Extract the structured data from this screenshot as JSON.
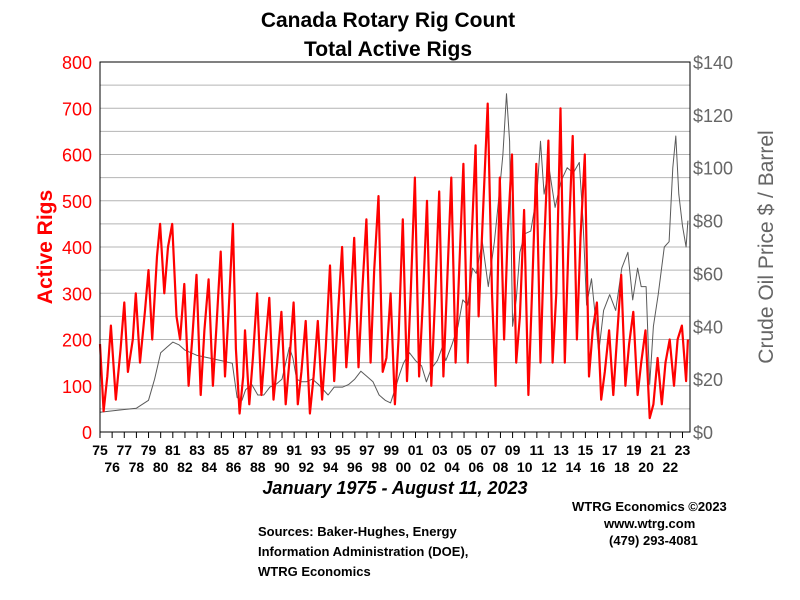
{
  "chart_data": {
    "type": "line",
    "title": "Canada Rotary Rig Count",
    "subtitle": "Total Active Rigs",
    "date_range": "January 1975 - August 11, 2023",
    "ylabel_left": "Active Rigs",
    "ylabel_right": "Crude Oil Price $ / Barrel",
    "ylim_left": [
      0,
      800
    ],
    "ylim_right": [
      0,
      140
    ],
    "yticks_left": [
      "0",
      "100",
      "200",
      "300",
      "400",
      "500",
      "600",
      "700",
      "800"
    ],
    "yticks_right": [
      "$0",
      "$20",
      "$40",
      "$60",
      "$80",
      "$100",
      "$120",
      "$140"
    ],
    "xticks_top": [
      "75",
      "77",
      "79",
      "81",
      "83",
      "85",
      "87",
      "89",
      "91",
      "93",
      "95",
      "97",
      "99",
      "01",
      "03",
      "05",
      "07",
      "09",
      "11",
      "13",
      "15",
      "17",
      "19",
      "21",
      "23"
    ],
    "xticks_bottom": [
      "76",
      "78",
      "80",
      "82",
      "84",
      "86",
      "88",
      "90",
      "92",
      "94",
      "96",
      "98",
      "00",
      "02",
      "04",
      "06",
      "08",
      "10",
      "12",
      "14",
      "16",
      "18",
      "20",
      "22"
    ],
    "grid": true,
    "series": [
      {
        "name": "Active Rigs",
        "axis": "left",
        "color": "#ff0000",
        "points": [
          [
            1975.0,
            190
          ],
          [
            1975.3,
            45
          ],
          [
            1975.6,
            120
          ],
          [
            1975.9,
            230
          ],
          [
            1976.3,
            70
          ],
          [
            1976.7,
            180
          ],
          [
            1977.0,
            280
          ],
          [
            1977.3,
            130
          ],
          [
            1977.7,
            200
          ],
          [
            1977.95,
            300
          ],
          [
            1978.3,
            150
          ],
          [
            1978.7,
            260
          ],
          [
            1979.0,
            350
          ],
          [
            1979.3,
            200
          ],
          [
            1979.7,
            380
          ],
          [
            1979.95,
            450
          ],
          [
            1980.3,
            300
          ],
          [
            1980.6,
            400
          ],
          [
            1980.95,
            450
          ],
          [
            1981.3,
            250
          ],
          [
            1981.6,
            200
          ],
          [
            1981.95,
            320
          ],
          [
            1982.3,
            100
          ],
          [
            1982.6,
            200
          ],
          [
            1982.95,
            340
          ],
          [
            1983.3,
            80
          ],
          [
            1983.6,
            220
          ],
          [
            1983.95,
            330
          ],
          [
            1984.3,
            100
          ],
          [
            1984.6,
            230
          ],
          [
            1984.95,
            390
          ],
          [
            1985.3,
            120
          ],
          [
            1985.6,
            260
          ],
          [
            1985.95,
            450
          ],
          [
            1986.2,
            180
          ],
          [
            1986.5,
            40
          ],
          [
            1986.8,
            120
          ],
          [
            1986.95,
            220
          ],
          [
            1987.3,
            60
          ],
          [
            1987.6,
            160
          ],
          [
            1987.95,
            300
          ],
          [
            1988.3,
            80
          ],
          [
            1988.6,
            180
          ],
          [
            1988.95,
            290
          ],
          [
            1989.3,
            70
          ],
          [
            1989.6,
            150
          ],
          [
            1989.95,
            260
          ],
          [
            1990.3,
            60
          ],
          [
            1990.6,
            150
          ],
          [
            1990.95,
            280
          ],
          [
            1991.3,
            60
          ],
          [
            1991.6,
            130
          ],
          [
            1991.95,
            240
          ],
          [
            1992.3,
            40
          ],
          [
            1992.6,
            120
          ],
          [
            1992.95,
            240
          ],
          [
            1993.3,
            70
          ],
          [
            1993.6,
            180
          ],
          [
            1993.95,
            360
          ],
          [
            1994.3,
            110
          ],
          [
            1994.6,
            250
          ],
          [
            1994.95,
            400
          ],
          [
            1995.3,
            140
          ],
          [
            1995.6,
            250
          ],
          [
            1995.95,
            420
          ],
          [
            1996.3,
            140
          ],
          [
            1996.6,
            300
          ],
          [
            1996.95,
            460
          ],
          [
            1997.3,
            150
          ],
          [
            1997.6,
            350
          ],
          [
            1997.95,
            510
          ],
          [
            1998.3,
            130
          ],
          [
            1998.6,
            160
          ],
          [
            1998.95,
            300
          ],
          [
            1999.3,
            60
          ],
          [
            1999.6,
            200
          ],
          [
            1999.95,
            460
          ],
          [
            2000.3,
            110
          ],
          [
            2000.6,
            300
          ],
          [
            2000.95,
            550
          ],
          [
            2001.3,
            120
          ],
          [
            2001.6,
            280
          ],
          [
            2001.95,
            500
          ],
          [
            2002.3,
            100
          ],
          [
            2002.6,
            280
          ],
          [
            2002.95,
            520
          ],
          [
            2003.3,
            120
          ],
          [
            2003.6,
            320
          ],
          [
            2003.95,
            550
          ],
          [
            2004.3,
            150
          ],
          [
            2004.6,
            350
          ],
          [
            2004.95,
            580
          ],
          [
            2005.3,
            150
          ],
          [
            2005.6,
            400
          ],
          [
            2005.95,
            620
          ],
          [
            2006.2,
            250
          ],
          [
            2006.6,
            500
          ],
          [
            2006.95,
            710
          ],
          [
            2007.3,
            300
          ],
          [
            2007.6,
            100
          ],
          [
            2007.95,
            550
          ],
          [
            2008.3,
            200
          ],
          [
            2008.6,
            430
          ],
          [
            2008.95,
            600
          ],
          [
            2009.3,
            150
          ],
          [
            2009.6,
            250
          ],
          [
            2009.95,
            480
          ],
          [
            2010.3,
            80
          ],
          [
            2010.6,
            300
          ],
          [
            2010.95,
            580
          ],
          [
            2011.3,
            150
          ],
          [
            2011.6,
            400
          ],
          [
            2011.95,
            630
          ],
          [
            2012.3,
            150
          ],
          [
            2012.6,
            300
          ],
          [
            2012.95,
            700
          ],
          [
            2013.3,
            150
          ],
          [
            2013.6,
            400
          ],
          [
            2013.95,
            640
          ],
          [
            2014.3,
            200
          ],
          [
            2014.6,
            420
          ],
          [
            2014.95,
            600
          ],
          [
            2015.3,
            120
          ],
          [
            2015.6,
            220
          ],
          [
            2015.95,
            280
          ],
          [
            2016.3,
            70
          ],
          [
            2016.6,
            130
          ],
          [
            2016.95,
            220
          ],
          [
            2017.3,
            80
          ],
          [
            2017.6,
            200
          ],
          [
            2017.95,
            340
          ],
          [
            2018.3,
            100
          ],
          [
            2018.6,
            190
          ],
          [
            2018.95,
            260
          ],
          [
            2019.3,
            80
          ],
          [
            2019.6,
            150
          ],
          [
            2019.95,
            220
          ],
          [
            2020.3,
            30
          ],
          [
            2020.6,
            60
          ],
          [
            2020.95,
            160
          ],
          [
            2021.3,
            60
          ],
          [
            2021.6,
            150
          ],
          [
            2021.95,
            200
          ],
          [
            2022.3,
            100
          ],
          [
            2022.6,
            200
          ],
          [
            2022.95,
            230
          ],
          [
            2023.3,
            110
          ],
          [
            2023.45,
            200
          ]
        ]
      },
      {
        "name": "Crude Oil Price",
        "axis": "right",
        "color": "#5a5a5a",
        "points": [
          [
            1975.0,
            7.5
          ],
          [
            1976.0,
            8
          ],
          [
            1977.0,
            8.5
          ],
          [
            1978.0,
            9
          ],
          [
            1979.0,
            12
          ],
          [
            1979.5,
            20
          ],
          [
            1980.0,
            30
          ],
          [
            1980.5,
            32
          ],
          [
            1981.0,
            34
          ],
          [
            1981.5,
            33
          ],
          [
            1982.0,
            31
          ],
          [
            1983.0,
            29
          ],
          [
            1984.0,
            28
          ],
          [
            1985.0,
            27
          ],
          [
            1985.9,
            26
          ],
          [
            1986.3,
            13
          ],
          [
            1986.7,
            12
          ],
          [
            1987.0,
            16
          ],
          [
            1987.5,
            18
          ],
          [
            1988.0,
            14
          ],
          [
            1988.5,
            14
          ],
          [
            1989.0,
            17
          ],
          [
            1989.5,
            18
          ],
          [
            1990.0,
            20
          ],
          [
            1990.6,
            32
          ],
          [
            1990.9,
            28
          ],
          [
            1991.2,
            20
          ],
          [
            1991.6,
            19
          ],
          [
            1992.0,
            19
          ],
          [
            1992.5,
            20
          ],
          [
            1993.0,
            18
          ],
          [
            1993.8,
            14
          ],
          [
            1994.3,
            17
          ],
          [
            1995.0,
            17
          ],
          [
            1995.5,
            18
          ],
          [
            1996.0,
            20
          ],
          [
            1996.5,
            23
          ],
          [
            1997.0,
            21
          ],
          [
            1997.5,
            19
          ],
          [
            1998.0,
            14
          ],
          [
            1998.5,
            12
          ],
          [
            1998.95,
            11
          ],
          [
            1999.3,
            16
          ],
          [
            1999.7,
            22
          ],
          [
            2000.0,
            26
          ],
          [
            2000.5,
            30
          ],
          [
            2001.0,
            27
          ],
          [
            2001.5,
            25
          ],
          [
            2001.9,
            19
          ],
          [
            2002.3,
            24
          ],
          [
            2002.8,
            27
          ],
          [
            2003.2,
            32
          ],
          [
            2003.5,
            27
          ],
          [
            2004.0,
            33
          ],
          [
            2004.5,
            40
          ],
          [
            2004.9,
            50
          ],
          [
            2005.3,
            48
          ],
          [
            2005.7,
            62
          ],
          [
            2006.0,
            60
          ],
          [
            2006.5,
            72
          ],
          [
            2007.0,
            55
          ],
          [
            2007.5,
            72
          ],
          [
            2007.9,
            90
          ],
          [
            2008.2,
            105
          ],
          [
            2008.5,
            128
          ],
          [
            2008.75,
            110
          ],
          [
            2009.0,
            40
          ],
          [
            2009.3,
            50
          ],
          [
            2009.6,
            68
          ],
          [
            2010.0,
            75
          ],
          [
            2010.5,
            76
          ],
          [
            2011.0,
            90
          ],
          [
            2011.3,
            110
          ],
          [
            2011.6,
            90
          ],
          [
            2012.0,
            100
          ],
          [
            2012.5,
            85
          ],
          [
            2013.0,
            95
          ],
          [
            2013.5,
            100
          ],
          [
            2014.0,
            98
          ],
          [
            2014.5,
            102
          ],
          [
            2014.8,
            80
          ],
          [
            2015.1,
            48
          ],
          [
            2015.5,
            58
          ],
          [
            2015.9,
            40
          ],
          [
            2016.1,
            30
          ],
          [
            2016.5,
            46
          ],
          [
            2017.0,
            52
          ],
          [
            2017.5,
            46
          ],
          [
            2018.0,
            62
          ],
          [
            2018.5,
            68
          ],
          [
            2018.9,
            50
          ],
          [
            2019.3,
            62
          ],
          [
            2019.6,
            55
          ],
          [
            2020.0,
            55
          ],
          [
            2020.3,
            18
          ],
          [
            2020.6,
            40
          ],
          [
            2021.0,
            52
          ],
          [
            2021.5,
            70
          ],
          [
            2021.9,
            72
          ],
          [
            2022.2,
            100
          ],
          [
            2022.45,
            112
          ],
          [
            2022.7,
            90
          ],
          [
            2023.0,
            78
          ],
          [
            2023.3,
            70
          ],
          [
            2023.45,
            80
          ]
        ]
      }
    ]
  },
  "sources": [
    "Sources: Baker-Hughes, Energy",
    "Information Administration (DOE),",
    "WTRG Economics"
  ],
  "credits": [
    "WTRG Economics  ©2023",
    "www.wtrg.com",
    "(479) 293-4081"
  ]
}
